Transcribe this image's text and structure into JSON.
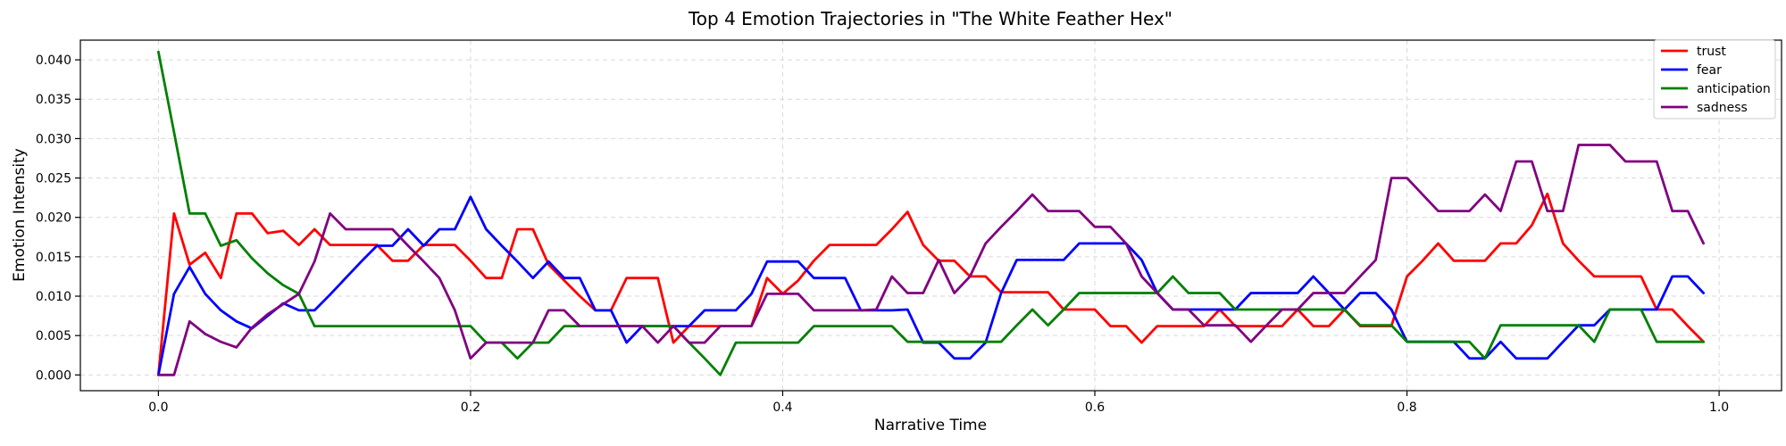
{
  "chart_data": {
    "type": "line",
    "title": "Top 4 Emotion Trajectories in \"The White Feather Hex\"",
    "xlabel": "Narrative Time",
    "ylabel": "Emotion Intensity",
    "xlim": [
      -0.05,
      1.04
    ],
    "ylim": [
      -0.002,
      0.0425
    ],
    "grid": true,
    "legend_position": "top-right",
    "x_ticks": [
      0.0,
      0.2,
      0.4,
      0.6,
      0.8,
      1.0
    ],
    "x_tick_labels": [
      "0.0",
      "0.2",
      "0.4",
      "0.6",
      "0.8",
      "1.0"
    ],
    "y_ticks": [
      0.0,
      0.005,
      0.01,
      0.015,
      0.02,
      0.025,
      0.03,
      0.035,
      0.04
    ],
    "y_tick_labels": [
      "0.000",
      "0.005",
      "0.010",
      "0.015",
      "0.020",
      "0.025",
      "0.030",
      "0.035",
      "0.040"
    ],
    "x": [
      0.0,
      0.01,
      0.02,
      0.03,
      0.04,
      0.05,
      0.06,
      0.07,
      0.08,
      0.09,
      0.1,
      0.11,
      0.12,
      0.13,
      0.14,
      0.15,
      0.16,
      0.17,
      0.18,
      0.19,
      0.2,
      0.21,
      0.22,
      0.23,
      0.24,
      0.25,
      0.26,
      0.27,
      0.28,
      0.29,
      0.3,
      0.31,
      0.32,
      0.33,
      0.34,
      0.35,
      0.36,
      0.37,
      0.38,
      0.39,
      0.4,
      0.41,
      0.42,
      0.43,
      0.44,
      0.45,
      0.46,
      0.47,
      0.48,
      0.49,
      0.5,
      0.51,
      0.52,
      0.53,
      0.54,
      0.55,
      0.56,
      0.57,
      0.58,
      0.59,
      0.6,
      0.61,
      0.62,
      0.63,
      0.64,
      0.65,
      0.66,
      0.67,
      0.68,
      0.69,
      0.7,
      0.71,
      0.72,
      0.73,
      0.74,
      0.75,
      0.76,
      0.77,
      0.78,
      0.79,
      0.8,
      0.81,
      0.82,
      0.83,
      0.84,
      0.85,
      0.86,
      0.87,
      0.88,
      0.89,
      0.9,
      0.91,
      0.92,
      0.93,
      0.94,
      0.95,
      0.96,
      0.97,
      0.98,
      0.99
    ],
    "series": [
      {
        "name": "trust",
        "color": "#ff0000",
        "values": [
          0.0,
          0.0205,
          0.014,
          0.0155,
          0.0123,
          0.0205,
          0.0205,
          0.018,
          0.0183,
          0.0165,
          0.0185,
          0.0165,
          0.0165,
          0.0165,
          0.0165,
          0.0145,
          0.0145,
          0.0165,
          0.0165,
          0.0165,
          0.0145,
          0.0123,
          0.0123,
          0.0185,
          0.0185,
          0.014,
          0.012,
          0.01,
          0.0082,
          0.0082,
          0.0123,
          0.0123,
          0.0123,
          0.0041,
          0.0062,
          0.0062,
          0.0062,
          0.0062,
          0.0062,
          0.0123,
          0.0103,
          0.012,
          0.0145,
          0.0165,
          0.0165,
          0.0165,
          0.0165,
          0.0185,
          0.0207,
          0.0165,
          0.0145,
          0.0145,
          0.0125,
          0.0125,
          0.0105,
          0.0105,
          0.0105,
          0.0105,
          0.0083,
          0.0083,
          0.0083,
          0.0062,
          0.0062,
          0.0041,
          0.0062,
          0.0062,
          0.0062,
          0.0062,
          0.0083,
          0.0062,
          0.0062,
          0.0062,
          0.0062,
          0.0083,
          0.0062,
          0.0062,
          0.0083,
          0.0062,
          0.0062,
          0.0062,
          0.0125,
          0.0145,
          0.0167,
          0.0145,
          0.0145,
          0.0145,
          0.0167,
          0.0167,
          0.019,
          0.023,
          0.0167,
          0.0145,
          0.0125,
          0.0125,
          0.0125,
          0.0125,
          0.0083,
          0.0083,
          0.0062,
          0.0042
        ]
      },
      {
        "name": "fear",
        "color": "#0000ff",
        "values": [
          0.0,
          0.0103,
          0.0137,
          0.0103,
          0.0082,
          0.0068,
          0.0059,
          0.0075,
          0.0091,
          0.0082,
          0.0082,
          0.0102,
          0.0123,
          0.0144,
          0.0164,
          0.0164,
          0.0185,
          0.0164,
          0.0185,
          0.0185,
          0.0226,
          0.0185,
          0.0164,
          0.0144,
          0.0123,
          0.0144,
          0.0123,
          0.0123,
          0.0082,
          0.0082,
          0.0041,
          0.0062,
          0.0062,
          0.0062,
          0.0062,
          0.0082,
          0.0082,
          0.0082,
          0.0103,
          0.0144,
          0.0144,
          0.0144,
          0.0123,
          0.0123,
          0.0123,
          0.0082,
          0.0082,
          0.0082,
          0.0083,
          0.0041,
          0.0041,
          0.0021,
          0.0021,
          0.0041,
          0.0104,
          0.0146,
          0.0146,
          0.0146,
          0.0146,
          0.0167,
          0.0167,
          0.0167,
          0.0167,
          0.0146,
          0.0104,
          0.0083,
          0.0083,
          0.0083,
          0.0083,
          0.0083,
          0.0104,
          0.0104,
          0.0104,
          0.0104,
          0.0125,
          0.0104,
          0.0083,
          0.0104,
          0.0104,
          0.0083,
          0.0042,
          0.0042,
          0.0042,
          0.0042,
          0.0021,
          0.0021,
          0.0042,
          0.0021,
          0.0021,
          0.0021,
          0.0042,
          0.0063,
          0.0063,
          0.0083,
          0.0083,
          0.0083,
          0.0083,
          0.0125,
          0.0125,
          0.0104
        ]
      },
      {
        "name": "anticipation",
        "color": "#008000",
        "values": [
          0.041,
          0.0308,
          0.0205,
          0.0205,
          0.0164,
          0.0171,
          0.0148,
          0.0129,
          0.0114,
          0.0103,
          0.0062,
          0.0062,
          0.0062,
          0.0062,
          0.0062,
          0.0062,
          0.0062,
          0.0062,
          0.0062,
          0.0062,
          0.0062,
          0.0041,
          0.0041,
          0.0021,
          0.0041,
          0.0041,
          0.0062,
          0.0062,
          0.0062,
          0.0062,
          0.0062,
          0.0062,
          0.0062,
          0.0062,
          0.0041,
          0.0021,
          0.0,
          0.0041,
          0.0041,
          0.0041,
          0.0041,
          0.0041,
          0.0062,
          0.0062,
          0.0062,
          0.0062,
          0.0062,
          0.0062,
          0.0042,
          0.0042,
          0.0042,
          0.0042,
          0.0042,
          0.0042,
          0.0042,
          0.0063,
          0.0083,
          0.0063,
          0.0083,
          0.0104,
          0.0104,
          0.0104,
          0.0104,
          0.0104,
          0.0104,
          0.0125,
          0.0104,
          0.0104,
          0.0104,
          0.0083,
          0.0083,
          0.0083,
          0.0083,
          0.0083,
          0.0083,
          0.0083,
          0.0083,
          0.0063,
          0.0063,
          0.0063,
          0.0042,
          0.0042,
          0.0042,
          0.0042,
          0.0042,
          0.0021,
          0.0063,
          0.0063,
          0.0063,
          0.0063,
          0.0063,
          0.0063,
          0.0042,
          0.0083,
          0.0083,
          0.0083,
          0.0042,
          0.0042,
          0.0042,
          0.0042
        ]
      },
      {
        "name": "sadness",
        "color": "#800080",
        "values": [
          0.0,
          0.0,
          0.0068,
          0.0052,
          0.0042,
          0.0035,
          0.006,
          0.0077,
          0.009,
          0.0103,
          0.0144,
          0.0205,
          0.0185,
          0.0185,
          0.0185,
          0.0185,
          0.0164,
          0.0144,
          0.0123,
          0.0082,
          0.0021,
          0.0041,
          0.0041,
          0.0041,
          0.0041,
          0.0082,
          0.0082,
          0.0062,
          0.0062,
          0.0062,
          0.0062,
          0.0062,
          0.0041,
          0.0062,
          0.0041,
          0.0041,
          0.0062,
          0.0062,
          0.0062,
          0.0103,
          0.0103,
          0.0103,
          0.0082,
          0.0082,
          0.0082,
          0.0082,
          0.0083,
          0.0125,
          0.0104,
          0.0104,
          0.0146,
          0.0104,
          0.0125,
          0.0167,
          0.0188,
          0.0208,
          0.0229,
          0.0208,
          0.0208,
          0.0208,
          0.0188,
          0.0188,
          0.0167,
          0.0125,
          0.0104,
          0.0083,
          0.0083,
          0.0063,
          0.0063,
          0.0063,
          0.0042,
          0.0063,
          0.0083,
          0.0083,
          0.0104,
          0.0104,
          0.0104,
          0.0125,
          0.0146,
          0.025,
          0.025,
          0.0229,
          0.0208,
          0.0208,
          0.0208,
          0.0229,
          0.0208,
          0.0271,
          0.0271,
          0.0208,
          0.0208,
          0.0292,
          0.0292,
          0.0292,
          0.0271,
          0.0271,
          0.0271,
          0.0208,
          0.0208,
          0.0167
        ]
      }
    ]
  }
}
